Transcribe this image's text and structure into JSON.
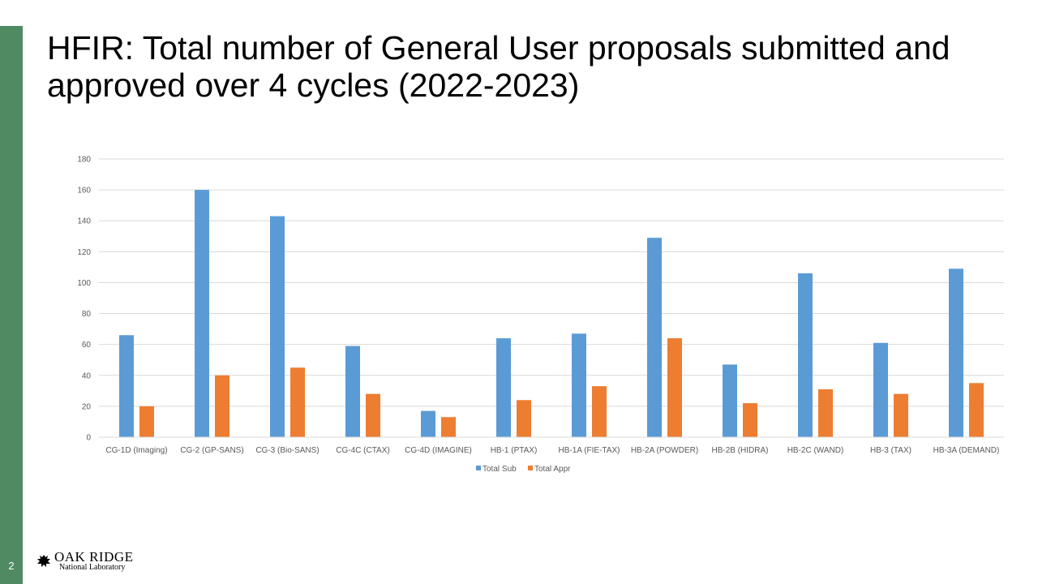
{
  "slide": {
    "title": "HFIR: Total number of General User proposals submitted and approved over 4 cycles (2022-2023)",
    "page_number": "2",
    "sidebar_color": "#4f8a63",
    "logo": {
      "line1": "OAK RIDGE",
      "line2": "National Laboratory",
      "icon": "oak-leaf-icon"
    }
  },
  "chart_data": {
    "type": "bar",
    "categories": [
      "CG-1D (Imaging)",
      "CG-2 (GP-SANS)",
      "CG-3 (Bio-SANS)",
      "CG-4C (CTAX)",
      "CG-4D (IMAGINE)",
      "HB-1 (PTAX)",
      "HB-1A (FIE-TAX)",
      "HB-2A (POWDER)",
      "HB-2B (HIDRA)",
      "HB-2C (WAND)",
      "HB-3 (TAX)",
      "HB-3A (DEMAND)"
    ],
    "series": [
      {
        "name": "Total Sub",
        "color": "#5b9bd5",
        "values": [
          66,
          160,
          143,
          59,
          17,
          64,
          67,
          129,
          47,
          106,
          61,
          109
        ]
      },
      {
        "name": "Total Appr",
        "color": "#ed7d31",
        "values": [
          20,
          40,
          45,
          28,
          13,
          24,
          33,
          64,
          22,
          31,
          28,
          35
        ]
      }
    ],
    "ylim": [
      0,
      180
    ],
    "yticks": [
      0,
      20,
      40,
      60,
      80,
      100,
      120,
      140,
      160,
      180
    ],
    "grid": true,
    "legend": "bottom"
  }
}
